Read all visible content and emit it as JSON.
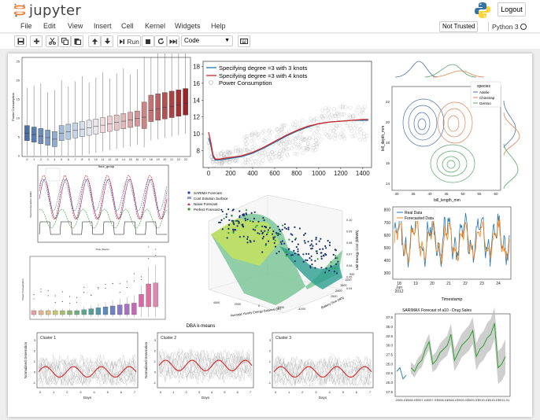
{
  "header": {
    "brand": "jupyter",
    "logout_label": "Logout"
  },
  "menu": {
    "items": [
      "File",
      "Edit",
      "View",
      "Insert",
      "Cell",
      "Kernel",
      "Widgets",
      "Help"
    ]
  },
  "kernel": {
    "trust_label": "Not Trusted",
    "name": "Python 3"
  },
  "toolbar": {
    "run_label": "Run",
    "cell_type": "Code"
  },
  "icons": {
    "save": "save-icon",
    "add": "plus-icon",
    "cut": "scissors-icon",
    "copy": "copy-icon",
    "paste": "paste-icon",
    "up": "arrow-up-icon",
    "down": "arrow-down-icon",
    "run": "step-forward-icon",
    "stop": "stop-icon",
    "restart": "restart-icon",
    "restart_run": "fast-forward-icon",
    "palette": "keyboard-icon"
  },
  "figures": {
    "boxplot_top": {
      "ylabel": "Power Consumption",
      "xlabel": "hour_group",
      "yticks": [
        "0",
        "5",
        "10",
        "15",
        "20",
        "25"
      ],
      "xticks": [
        "0",
        "1",
        "2",
        "3",
        "4",
        "5",
        "6",
        "7",
        "8",
        "9",
        "10",
        "11",
        "12",
        "13",
        "14",
        "15",
        "16",
        "17",
        "18",
        "19",
        "20",
        "21",
        "22",
        "23"
      ]
    },
    "spline": {
      "chart_data": {
        "type": "line",
        "legend": [
          "Specifying degree =3 with 3 knots",
          "Specifying degree =3 with 4 knots",
          "Power Consumption"
        ],
        "xticks": [
          0,
          200,
          400,
          600,
          800,
          1000,
          1200,
          1400
        ],
        "yticks": [
          8,
          10,
          12,
          14,
          16,
          18
        ],
        "xlim": [
          -50,
          1480
        ],
        "ylim": [
          6.0,
          18.6
        ],
        "series": [
          {
            "x": [
              0,
              20,
              40,
              60,
              100,
              150,
              200,
              300,
              400,
              500,
              600,
              700,
              800,
              900,
              1000,
              1100,
              1200,
              1300,
              1400,
              1450
            ],
            "y": [
              9.5,
              8.6,
              7.3,
              6.9,
              6.9,
              7.0,
              7.1,
              7.3,
              7.7,
              8.3,
              9.0,
              9.7,
              10.3,
              10.8,
              11.2,
              11.4,
              11.5,
              11.6,
              11.6,
              11.6
            ]
          },
          {
            "x": [
              0,
              20,
              40,
              60,
              100,
              150,
              200,
              300,
              400,
              500,
              600,
              700,
              800,
              900,
              1000,
              1100,
              1200,
              1300,
              1400,
              1450
            ],
            "y": [
              10.2,
              9.0,
              7.5,
              7.0,
              7.0,
              7.1,
              7.2,
              7.4,
              7.8,
              8.4,
              9.1,
              9.8,
              10.4,
              10.9,
              11.2,
              11.4,
              11.5,
              11.6,
              11.7,
              11.7
            ]
          }
        ]
      }
    },
    "jointplot": {
      "legend_title": "species",
      "legend": [
        "Adelie",
        "Chinstrap",
        "Gentoo"
      ],
      "colors": [
        "#4c72b0",
        "#dd8452",
        "#55a868"
      ],
      "xlabel": "bill_length_mm",
      "ylabel": "bill_depth_mm",
      "xticks": [
        "30",
        "35",
        "40",
        "45",
        "50",
        "55",
        "60"
      ],
      "yticks": [
        "14",
        "16",
        "18",
        "20",
        "22"
      ]
    },
    "multiline": {
      "ylabel": "Total Consumption (kWh)",
      "xlabel": "Time (hours)"
    },
    "surface": {
      "legend": [
        "SARIMA Forecast",
        "Cost Solution Surface",
        "Naive Forecast",
        "Perfect Forecast"
      ],
      "zlabel": "Unit Energy Cost ($/kWh)",
      "xlabel": "Average Hourly Energy Balance (W)",
      "ylabel": "Battery Size (Wh)",
      "zticks": [
        "0.04",
        "0.05",
        "0.06",
        "0.07",
        "0.08",
        "0.09",
        "0.10"
      ],
      "xticks": [
        "4000",
        "2000",
        "0",
        "-2000",
        "-4000"
      ],
      "yticks": [
        "2500",
        "2000",
        "1500",
        "1000",
        "500"
      ]
    },
    "timeseries": {
      "legend": [
        "Real Data",
        "Forecasted Data"
      ],
      "xlabel": "Timestamp",
      "xticks": [
        "18\nJun\n2012",
        "19",
        "20",
        "21",
        "22",
        "23",
        "24"
      ],
      "yticks": [
        "300",
        "400",
        "500",
        "600",
        "700",
        "800"
      ]
    },
    "boxplot_colored": {
      "ylabel": "Power Consumption"
    },
    "sarimax": {
      "chart_data": {
        "type": "line",
        "title": "SARIMAX Forecast of a10 - Drug Sales",
        "yticks": [
          17.5,
          20.0,
          22.5,
          25.0,
          27.5,
          30.0,
          32.5,
          35.0,
          37.5
        ],
        "ylim": [
          16.5,
          38.5
        ],
        "xticks": [
          "2006-01",
          "2006-07",
          "2007-01",
          "2007-07",
          "2008-01",
          "2008-07",
          "2009-01",
          "2009-07",
          "2010-01",
          "2010-07",
          "2011-01"
        ],
        "observed": [
          23,
          24,
          21,
          22
        ],
        "forecast": [
          24,
          23,
          25,
          26,
          29,
          31,
          25,
          26,
          28,
          29,
          30,
          33,
          26,
          28,
          30,
          31,
          32,
          34,
          27,
          29,
          30,
          32,
          33,
          36,
          24,
          25,
          27
        ]
      }
    },
    "dba": {
      "title": "DBA k-means",
      "panels": [
        {
          "label": "Cluster 1",
          "ylabel": "Normalised Generation",
          "xlabel": "Days"
        },
        {
          "label": "Cluster 2",
          "ylabel": "Normalised Generation",
          "xlabel": "Days"
        },
        {
          "label": "Cluster 3",
          "ylabel": "",
          "xlabel": "Days"
        }
      ],
      "yticks": [
        "-1",
        "0",
        "1",
        "2",
        "3"
      ],
      "xticks": [
        "0",
        "1",
        "2",
        "3",
        "4",
        "5",
        "6",
        "7"
      ]
    }
  }
}
